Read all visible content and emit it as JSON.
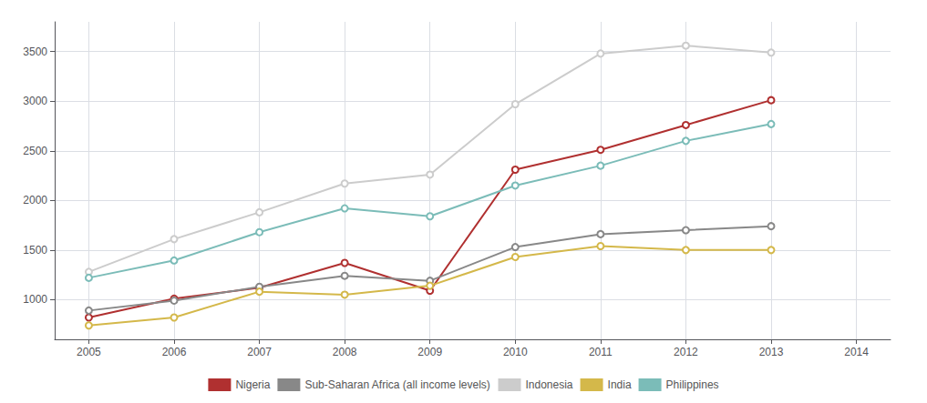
{
  "chart_data": {
    "type": "line",
    "x": [
      2005,
      2006,
      2007,
      2008,
      2009,
      2010,
      2011,
      2012,
      2013
    ],
    "series": [
      {
        "name": "Nigeria",
        "color": "#b03030",
        "values": [
          820,
          1010,
          1120,
          1370,
          1090,
          2310,
          2510,
          2760,
          3010
        ]
      },
      {
        "name": "Sub-Saharan Africa (all income levels)",
        "color": "#888888",
        "values": [
          890,
          990,
          1130,
          1240,
          1190,
          1530,
          1660,
          1700,
          1740
        ]
      },
      {
        "name": "Indonesia",
        "color": "#cccccc",
        "values": [
          1280,
          1610,
          1880,
          2170,
          2260,
          2970,
          3480,
          3560,
          3490
        ]
      },
      {
        "name": "India",
        "color": "#d4b84a",
        "values": [
          740,
          820,
          1080,
          1050,
          1140,
          1430,
          1540,
          1500,
          1500
        ]
      },
      {
        "name": "Philippines",
        "color": "#7bbcb8",
        "values": [
          1220,
          1395,
          1680,
          1920,
          1840,
          2150,
          2350,
          2600,
          2770
        ]
      }
    ],
    "xlim": [
      2004.6,
      2014.4
    ],
    "xticks": [
      2005,
      2006,
      2007,
      2008,
      2009,
      2010,
      2011,
      2012,
      2013,
      2014
    ],
    "ylim": [
      600,
      3800
    ],
    "yticks": [
      1000,
      1500,
      2000,
      2500,
      3000,
      3500
    ],
    "grid": true,
    "legend": "bottom",
    "marker": "circle"
  }
}
